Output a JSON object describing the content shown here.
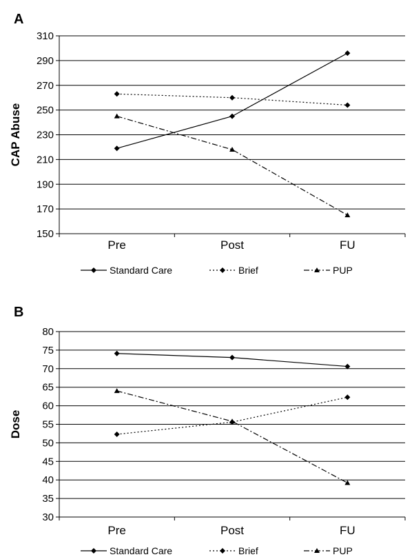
{
  "chart_data": [
    {
      "type": "line",
      "panel": "A",
      "categories": [
        "Pre",
        "Post",
        "FU"
      ],
      "ylabel": "CAP Abuse",
      "xlabel": "",
      "ylim": [
        150,
        310
      ],
      "yticks": [
        150,
        170,
        190,
        210,
        230,
        250,
        270,
        290,
        310
      ],
      "grid": true,
      "legend_position": "bottom",
      "series": [
        {
          "name": "Standard Care",
          "values": [
            219,
            245,
            296
          ],
          "style": "solid",
          "marker": "diamond"
        },
        {
          "name": "Brief",
          "values": [
            263,
            260,
            254
          ],
          "style": "dotted",
          "marker": "diamond"
        },
        {
          "name": "PUP",
          "values": [
            245,
            218,
            165
          ],
          "style": "dashdot",
          "marker": "triangle"
        }
      ]
    },
    {
      "type": "line",
      "panel": "B",
      "categories": [
        "Pre",
        "Post",
        "FU"
      ],
      "ylabel": "Dose",
      "xlabel": "",
      "ylim": [
        30,
        80
      ],
      "yticks": [
        30,
        35,
        40,
        45,
        50,
        55,
        60,
        65,
        70,
        75,
        80
      ],
      "grid": true,
      "legend_position": "bottom",
      "series": [
        {
          "name": "Standard Care",
          "values": [
            74.1,
            73,
            70.6
          ],
          "style": "solid",
          "marker": "diamond"
        },
        {
          "name": "Brief",
          "values": [
            52.3,
            55.6,
            62.3
          ],
          "style": "dotted",
          "marker": "diamond"
        },
        {
          "name": "PUP",
          "values": [
            64,
            55.8,
            39.2
          ],
          "style": "dashdot",
          "marker": "triangle"
        }
      ]
    }
  ],
  "colors": {
    "line": "#000000",
    "grid": "#000000",
    "background": "#ffffff"
  }
}
